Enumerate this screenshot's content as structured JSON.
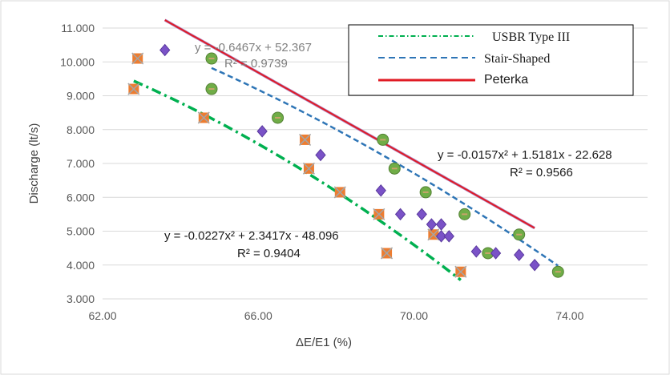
{
  "chart_data": {
    "type": "scatter",
    "xlabel": "ΔE/E1 (%)",
    "ylabel": "Discharge (lt/s)",
    "xlim": [
      62,
      76
    ],
    "ylim": [
      3,
      11
    ],
    "x_ticks": [
      "62.00",
      "66.00",
      "70.00",
      "74.00"
    ],
    "y_ticks": [
      "3.000",
      "4.000",
      "5.000",
      "6.000",
      "7.000",
      "8.000",
      "9.000",
      "10.000",
      "11.000"
    ],
    "grid": "horizontal",
    "legend_position": "top-right",
    "series": [
      {
        "name": "USBR Type III",
        "marker": "orange-x-square",
        "color": "#00b050",
        "points": [
          [
            62.8,
            9.2
          ],
          [
            62.9,
            10.1
          ],
          [
            64.6,
            8.35
          ],
          [
            67.2,
            7.7
          ],
          [
            67.3,
            6.85
          ],
          [
            68.1,
            6.15
          ],
          [
            69.1,
            5.5
          ],
          [
            69.3,
            4.35
          ],
          [
            70.5,
            4.9
          ],
          [
            71.2,
            3.8
          ]
        ]
      },
      {
        "name": "Stair-Shaped",
        "marker": "green-circle",
        "color": "#2e75b6",
        "points": [
          [
            64.8,
            10.1
          ],
          [
            64.8,
            9.2
          ],
          [
            66.5,
            8.35
          ],
          [
            69.2,
            7.7
          ],
          [
            69.5,
            6.85
          ],
          [
            70.3,
            6.15
          ],
          [
            71.3,
            5.5
          ],
          [
            71.9,
            4.35
          ],
          [
            72.7,
            4.9
          ],
          [
            73.7,
            3.8
          ]
        ]
      },
      {
        "name": "Peterka",
        "marker": "purple-diamond",
        "color": "#e01b24",
        "points": [
          [
            63.6,
            10.35
          ],
          [
            66.1,
            7.95
          ],
          [
            67.6,
            7.25
          ],
          [
            69.15,
            6.2
          ],
          [
            69.65,
            5.5
          ],
          [
            70.2,
            5.5
          ],
          [
            70.45,
            5.2
          ],
          [
            70.7,
            5.2
          ],
          [
            70.7,
            4.85
          ],
          [
            70.9,
            4.85
          ],
          [
            71.6,
            4.4
          ],
          [
            72.1,
            4.35
          ],
          [
            72.7,
            4.3
          ],
          [
            73.1,
            4.0
          ]
        ]
      }
    ],
    "trendlines": [
      {
        "series": "USBR Type III",
        "style": "dash-dot",
        "coeffs": [
          -0.0227,
          2.3417,
          -48.096
        ],
        "xrange": [
          62.8,
          71.2
        ]
      },
      {
        "series": "Stair-Shaped",
        "style": "dashed",
        "coeffs": [
          -0.0157,
          1.5181,
          -22.628
        ],
        "xrange": [
          64.8,
          73.7
        ]
      },
      {
        "series": "Peterka",
        "style": "solid",
        "coeffs": [
          0,
          -0.6467,
          52.367
        ],
        "xrange": [
          63.6,
          73.1
        ]
      }
    ],
    "annotations": {
      "peterka_eq": "y = -0.6467x + 52.367",
      "peterka_r2": "R² = 0.9739",
      "stair_eq": "y = -0.0157x² + 1.5181x - 22.628",
      "stair_r2": "R² = 0.9566",
      "usbr_eq": "y = -0.0227x² + 2.3417x - 48.096",
      "usbr_r2": "R² = 0.9404"
    }
  }
}
